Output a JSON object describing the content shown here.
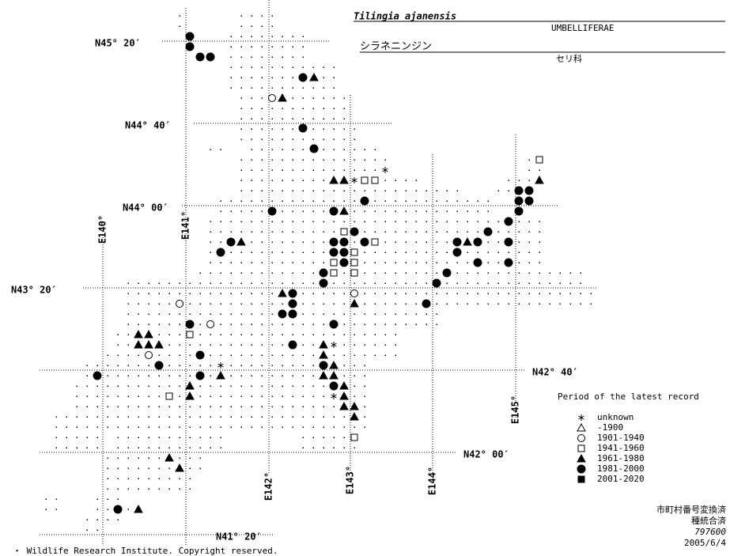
{
  "header": {
    "species": "Tilingia ajanensis",
    "family": "UMBELLIFERAE",
    "species_ja": "シラネニンジン",
    "family_ja": "セリ科"
  },
  "latitude_labels": [
    "N45° 20′",
    "N44° 40′",
    "N44° 00′",
    "N43° 20′",
    "N42° 40′",
    "N42° 00′",
    "N41° 20′"
  ],
  "longitude_labels": [
    "E140°",
    "E141°",
    "E142°",
    "E143°",
    "E144°",
    "E145°"
  ],
  "legend": {
    "title": "Period of the latest record",
    "items": [
      "unknown",
      "-1900",
      "1901-1940",
      "1941-1960",
      "1961-1980",
      "1981-2000",
      "2001-2020"
    ]
  },
  "footer": {
    "lines": [
      "市町村番号変換済",
      "種統合済",
      "797600",
      "2005/6/4"
    ],
    "copyright": "・ Wildlife Research Institute. Copyright reserved."
  }
}
